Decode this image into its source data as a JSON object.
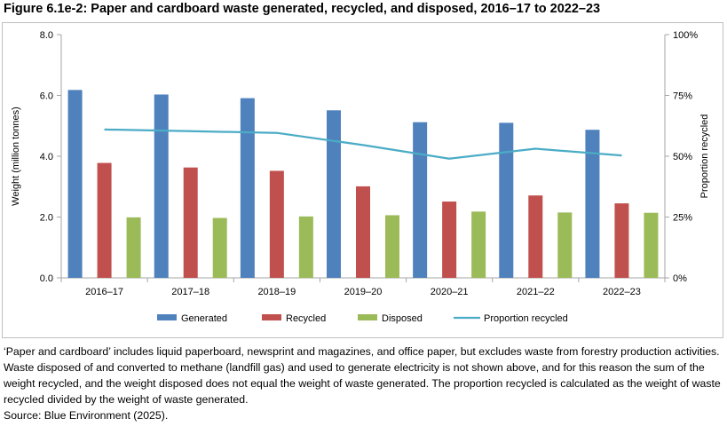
{
  "figure": {
    "title": "Figure 6.1e-2: Paper and cardboard waste generated, recycled, and disposed, 2016–17 to 2022–23"
  },
  "chart_data": {
    "type": "bar",
    "categories": [
      "2016–17",
      "2017–18",
      "2018–19",
      "2019–20",
      "2020–21",
      "2021–22",
      "2022–23"
    ],
    "series": [
      {
        "name": "Generated",
        "type": "bar",
        "axis": "left",
        "color": "#4f81bd",
        "values": [
          6.18,
          6.03,
          5.91,
          5.51,
          5.12,
          5.1,
          4.87
        ]
      },
      {
        "name": "Recycled",
        "type": "bar",
        "axis": "left",
        "color": "#c0504d",
        "values": [
          3.78,
          3.63,
          3.52,
          3.01,
          2.51,
          2.71,
          2.45
        ]
      },
      {
        "name": "Disposed",
        "type": "bar",
        "axis": "left",
        "color": "#9bbb59",
        "values": [
          1.99,
          1.97,
          2.02,
          2.06,
          2.18,
          2.15,
          2.14
        ]
      },
      {
        "name": "Proportion recycled",
        "type": "line",
        "axis": "right",
        "color": "#4bacc6",
        "values": [
          61,
          60.3,
          59.6,
          54.6,
          49,
          53.1,
          50.3
        ]
      }
    ],
    "ylabel": "Weight (million tonnes)",
    "y2label": "Proportion recycled",
    "ylim": [
      0,
      8
    ],
    "y_ticks": [
      "0.0",
      "2.0",
      "4.0",
      "6.0",
      "8.0"
    ],
    "y2lim": [
      0,
      100
    ],
    "y2_ticks": [
      "0%",
      "25%",
      "50%",
      "75%",
      "100%"
    ],
    "grid": false,
    "legend_position": "bottom"
  },
  "notes": {
    "text": "‘Paper and cardboard’ includes liquid paperboard, newsprint and magazines, and office paper, but excludes waste from forestry production activities. Waste disposed of and converted to methane (landfill gas) and used to generate electricity is not shown above, and for this reason the sum of the weight recycled, and the weight disposed does not equal the weight of waste generated. The proportion recycled is calculated as the weight of waste recycled divided by the weight of waste generated.",
    "source": "Source: Blue Environment (2025)."
  }
}
